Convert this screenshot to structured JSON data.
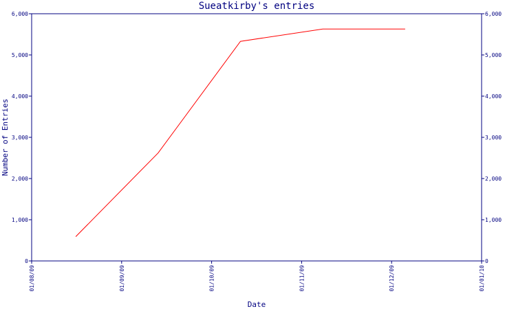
{
  "chart_data": {
    "type": "line",
    "title": "Sueatkirby's entries",
    "xlabel": "Date",
    "ylabel": "Number of Entries",
    "x_ticks": [
      "01/08/09",
      "01/09/09",
      "01/10/09",
      "01/11/09",
      "01/12/09",
      "01/01/10"
    ],
    "y_ticks": [
      "0",
      "1,000",
      "2,000",
      "3,000",
      "4,000",
      "5,000",
      "6,000"
    ],
    "ylim": [
      0,
      6000
    ],
    "xlim": [
      "2009-08-01",
      "2010-01-01"
    ],
    "grid": false,
    "series": [
      {
        "x": [
          "2009-08-16",
          "2009-09-13",
          "2009-10-11",
          "2009-11-08",
          "2009-12-06"
        ],
        "y": [
          590,
          2620,
          5330,
          5630,
          5630
        ],
        "color": "#ff0000"
      }
    ],
    "axis_color": "#000080"
  }
}
